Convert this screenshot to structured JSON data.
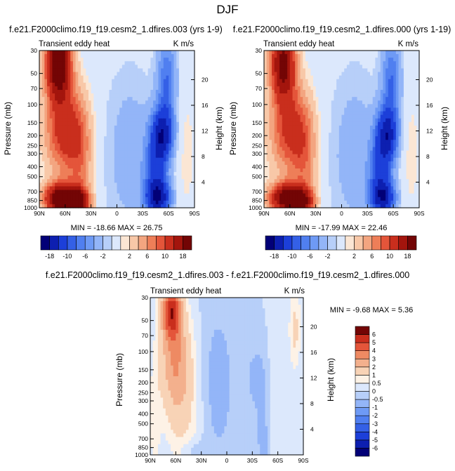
{
  "figure": {
    "title": "DJF"
  },
  "chart_data": [
    {
      "type": "heatmap",
      "title": "f.e21.F2000climo.f19_f19.cesm2_1.dfires.003 (yrs 1-9)",
      "subtitle_left": "Transient eddy heat",
      "subtitle_right": "K m/s",
      "ylabel": "Pressure (mb)",
      "ylabel_right": "Height (km)",
      "x_ticks": [
        "90N",
        "60N",
        "30N",
        "0",
        "30S",
        "60S",
        "90S"
      ],
      "xlim": [
        90,
        -90
      ],
      "y_ticks": [
        30,
        50,
        70,
        100,
        150,
        200,
        250,
        300,
        400,
        500,
        700,
        850,
        1000
      ],
      "ylim": [
        1000,
        30
      ],
      "y_scale": "log",
      "height_ticks": [
        4,
        8,
        12,
        16,
        20
      ],
      "stats": "MIN = -18.66   MAX = 26.75",
      "min": -18.66,
      "max": 26.75,
      "features": [
        {
          "lat": 68,
          "p": 40,
          "value": 24,
          "dlat": 10,
          "dlogp": 0.24
        },
        {
          "lat": 65,
          "p": 820,
          "value": 24,
          "dlat": 13,
          "dlogp": 0.1
        },
        {
          "lat": 45,
          "p": 880,
          "value": 16,
          "dlat": 9,
          "dlogp": 0.09
        },
        {
          "lat": 60,
          "p": 180,
          "value": 12,
          "dlat": 16,
          "dlogp": 0.3
        },
        {
          "lat": 42,
          "p": 400,
          "value": 5,
          "dlat": 10,
          "dlogp": 0.4
        },
        {
          "lat": -52,
          "p": 200,
          "value": -16,
          "dlat": 9,
          "dlogp": 0.18
        },
        {
          "lat": -48,
          "p": 800,
          "value": -16,
          "dlat": 10,
          "dlogp": 0.12
        },
        {
          "lat": -58,
          "p": 60,
          "value": -8,
          "dlat": 8,
          "dlogp": 0.3
        },
        {
          "lat": -45,
          "p": 450,
          "value": -8,
          "dlat": 9,
          "dlogp": 0.2
        },
        {
          "lat": -15,
          "p": 300,
          "value": -3,
          "dlat": 22,
          "dlogp": 0.6
        },
        {
          "lat": -80,
          "p": 300,
          "value": 1.5,
          "dlat": 8,
          "dlogp": 0.5
        }
      ]
    },
    {
      "type": "heatmap",
      "title": "f.e21.F2000climo.f19_f19.cesm2_1.dfires.000 (yrs 1-19)",
      "subtitle_left": "Transient eddy heat",
      "subtitle_right": "K m/s",
      "ylabel": "Pressure (mb)",
      "ylabel_right": "Height (km)",
      "x_ticks": [
        "90N",
        "60N",
        "30N",
        "0",
        "30S",
        "60S",
        "90S"
      ],
      "xlim": [
        90,
        -90
      ],
      "y_ticks": [
        30,
        50,
        70,
        100,
        150,
        200,
        250,
        300,
        400,
        500,
        700,
        850,
        1000
      ],
      "ylim": [
        1000,
        30
      ],
      "y_scale": "log",
      "height_ticks": [
        4,
        8,
        12,
        16,
        20
      ],
      "stats": "MIN = -17.99   MAX = 22.46",
      "min": -17.99,
      "max": 22.46,
      "features": [
        {
          "lat": 68,
          "p": 40,
          "value": 20,
          "dlat": 10,
          "dlogp": 0.24
        },
        {
          "lat": 65,
          "p": 820,
          "value": 21,
          "dlat": 13,
          "dlogp": 0.1
        },
        {
          "lat": 45,
          "p": 880,
          "value": 14,
          "dlat": 9,
          "dlogp": 0.09
        },
        {
          "lat": 60,
          "p": 180,
          "value": 11,
          "dlat": 16,
          "dlogp": 0.3
        },
        {
          "lat": 42,
          "p": 400,
          "value": 5,
          "dlat": 10,
          "dlogp": 0.4
        },
        {
          "lat": -52,
          "p": 200,
          "value": -15,
          "dlat": 9,
          "dlogp": 0.18
        },
        {
          "lat": -48,
          "p": 800,
          "value": -15,
          "dlat": 10,
          "dlogp": 0.12
        },
        {
          "lat": -58,
          "p": 60,
          "value": -8,
          "dlat": 8,
          "dlogp": 0.3
        },
        {
          "lat": -45,
          "p": 450,
          "value": -8,
          "dlat": 9,
          "dlogp": 0.2
        },
        {
          "lat": -15,
          "p": 300,
          "value": -3,
          "dlat": 22,
          "dlogp": 0.6
        },
        {
          "lat": -80,
          "p": 300,
          "value": 1.5,
          "dlat": 8,
          "dlogp": 0.5
        }
      ]
    },
    {
      "type": "heatmap",
      "title": "f.e21.F2000climo.f19_f19.cesm2_1.dfires.003 - f.e21.F2000climo.f19_f19.cesm2_1.dfires.000",
      "subtitle_left": "Transient eddy heat",
      "subtitle_right": "K m/s",
      "ylabel": "Pressure (mb)",
      "ylabel_right": "Height (km)",
      "x_ticks": [
        "90N",
        "60N",
        "30N",
        "0",
        "30S",
        "60S",
        "90S"
      ],
      "xlim": [
        90,
        -90
      ],
      "y_ticks": [
        30,
        50,
        70,
        100,
        150,
        200,
        250,
        300,
        400,
        500,
        700,
        850,
        1000
      ],
      "ylim": [
        1000,
        30
      ],
      "y_scale": "log",
      "height_ticks": [
        4,
        8,
        12,
        16,
        20
      ],
      "stats": "MIN = -9.68   MAX =  5.36",
      "min": -9.68,
      "max": 5.36,
      "features": [
        {
          "lat": 65,
          "p": 40,
          "value": 5,
          "dlat": 8,
          "dlogp": 0.18
        },
        {
          "lat": 62,
          "p": 110,
          "value": 2.5,
          "dlat": 12,
          "dlogp": 0.35
        },
        {
          "lat": 52,
          "p": 300,
          "value": 1.2,
          "dlat": 14,
          "dlogp": 0.45
        },
        {
          "lat": 85,
          "p": 500,
          "value": 0.7,
          "dlat": 5,
          "dlogp": 0.4
        },
        {
          "lat": -80,
          "p": 60,
          "value": 1.2,
          "dlat": 5,
          "dlogp": 0.3
        },
        {
          "lat": -55,
          "p": 500,
          "value": 0.7,
          "dlat": 6,
          "dlogp": 0.4
        },
        {
          "lat": 10,
          "p": 200,
          "value": -0.8,
          "dlat": 14,
          "dlogp": 0.55
        },
        {
          "lat": -35,
          "p": 180,
          "value": -0.9,
          "dlat": 8,
          "dlogp": 0.2
        },
        {
          "lat": -45,
          "p": 700,
          "value": -0.8,
          "dlat": 8,
          "dlogp": 0.3
        },
        {
          "lat": 40,
          "p": 900,
          "value": -0.6,
          "dlat": 10,
          "dlogp": 0.06
        }
      ]
    }
  ],
  "colorbars": [
    {
      "orientation": "horizontal",
      "levels": [
        -18,
        -14,
        -10,
        -8,
        -6,
        -4,
        -2,
        -1,
        1,
        2,
        4,
        6,
        8,
        10,
        14,
        18
      ],
      "labels": [
        "-18",
        "-10",
        "-6",
        "-2",
        "2",
        "6",
        "10",
        "18"
      ],
      "colors": [
        "#020077",
        "#0d1fb0",
        "#1c3fd9",
        "#3460e6",
        "#507ff0",
        "#6e9af5",
        "#93b5f8",
        "#b7cff9",
        "#dce8fc",
        "#fbe6d4",
        "#f8c8a8",
        "#f3a580",
        "#ee7e58",
        "#e4553a",
        "#c92e1d",
        "#a3150d",
        "#730505"
      ]
    },
    {
      "orientation": "horizontal",
      "levels": [
        -18,
        -14,
        -10,
        -8,
        -6,
        -4,
        -2,
        -1,
        1,
        2,
        4,
        6,
        8,
        10,
        14,
        18
      ],
      "labels": [
        "-18",
        "-10",
        "-6",
        "-2",
        "2",
        "6",
        "10",
        "18"
      ],
      "colors": [
        "#020077",
        "#0d1fb0",
        "#1c3fd9",
        "#3460e6",
        "#507ff0",
        "#6e9af5",
        "#93b5f8",
        "#b7cff9",
        "#dce8fc",
        "#fbe6d4",
        "#f8c8a8",
        "#f3a580",
        "#ee7e58",
        "#e4553a",
        "#c92e1d",
        "#a3150d",
        "#730505"
      ]
    },
    {
      "orientation": "vertical",
      "levels": [
        -6,
        -5,
        -4,
        -3,
        -2,
        -1,
        -0.5,
        0,
        0.5,
        1,
        2,
        3,
        4,
        5,
        6
      ],
      "labels": [
        "-6",
        "-5",
        "-4",
        "-3",
        "-2",
        "-1",
        "-0.5",
        "0",
        "0.5",
        "1",
        "2",
        "3",
        "4",
        "5",
        "6"
      ],
      "colors": [
        "#020077",
        "#0d1fb0",
        "#1c3fd9",
        "#3460e6",
        "#507ff0",
        "#6e9af5",
        "#93b5f8",
        "#b7cff9",
        "#dce8fc",
        "#fdf2e6",
        "#f8d3b6",
        "#f3b08d",
        "#ee8a63",
        "#e4553a",
        "#c92e1d",
        "#730505"
      ]
    }
  ]
}
